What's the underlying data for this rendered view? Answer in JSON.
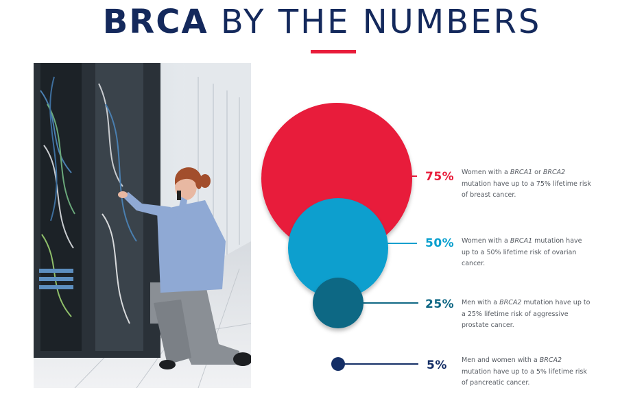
{
  "header": {
    "title_bold": "BRCA",
    "title_rest": "BY THE NUMBERS"
  },
  "photo": {
    "description": "Woman in a blue shirt kneeling beside a server rack while talking on a phone"
  },
  "colors": {
    "navy": "#14295c",
    "red": "#e81c3a",
    "blue": "#079fce",
    "teal": "#0f6784",
    "dark_navy": "#142e66"
  },
  "stats": [
    {
      "percent": "75%",
      "text_a": "Women with a ",
      "text_b": "BRCA1",
      "text_c": " or ",
      "text_d": "BRCA2",
      "text_e": "mutation have up to a 75% lifetime risk of breast cancer."
    },
    {
      "percent": "50%",
      "text_a": "Women with a ",
      "text_b": "BRCA1",
      "text_c": " mutation have up to a 50% lifetime risk of ovarian cancer."
    },
    {
      "percent": "25%",
      "text_a": "Men with a ",
      "text_b": "BRCA2",
      "text_c": " mutation have up to a 25% lifetime risk of aggressive prostate cancer."
    },
    {
      "percent": "5%",
      "text_a": "Men and women with a ",
      "text_b": "BRCA2",
      "text_c": " mutation have up to a 5% lifetime risk of pancreatic cancer."
    }
  ]
}
